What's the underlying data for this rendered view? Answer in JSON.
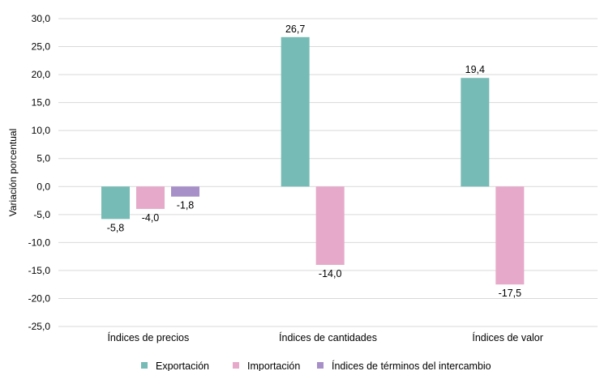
{
  "chart_data": {
    "type": "bar",
    "categories": [
      "Índices de precios",
      "Índices de cantidades",
      "Índices de valor"
    ],
    "series": [
      {
        "name": "Exportación",
        "values": [
          -5.8,
          26.7,
          19.4
        ],
        "labels": [
          "-5,8",
          "26,7",
          "19,4"
        ],
        "color": "#76bbb5"
      },
      {
        "name": "Importación",
        "values": [
          -4.0,
          -14.0,
          -17.5
        ],
        "labels": [
          "-4,0",
          "-14,0",
          "-17,5"
        ],
        "color": "#e6a9c9"
      },
      {
        "name": "Índices de términos del intercambio",
        "values": [
          -1.8,
          null,
          null
        ],
        "labels": [
          "-1,8",
          "",
          ""
        ],
        "color": "#a78fc7"
      }
    ],
    "ylabel": "Variación porcentual",
    "ylim": [
      -25,
      30
    ],
    "yticks": [
      30,
      25,
      20,
      15,
      10,
      5,
      0,
      -5,
      -10,
      -15,
      -20,
      -25
    ],
    "ytick_labels": [
      "30,0",
      "25,0",
      "20,0",
      "15,0",
      "10,0",
      "5,0",
      "0,0",
      "-5,0",
      "-10,0",
      "-15,0",
      "-20,0",
      "-25,0"
    ],
    "grid": true,
    "legend": "bottom"
  }
}
